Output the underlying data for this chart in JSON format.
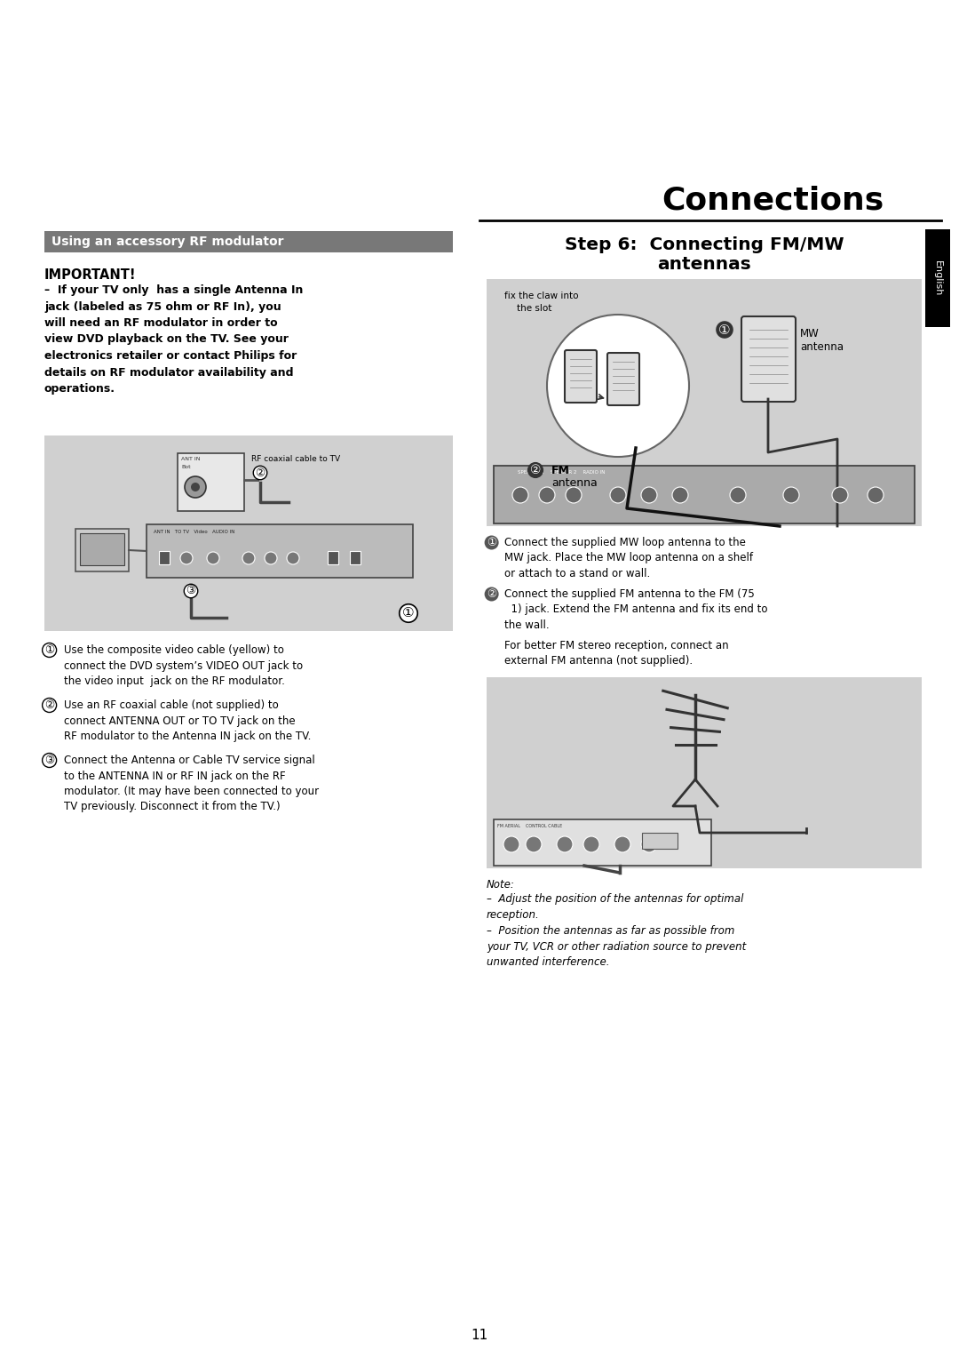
{
  "title": "Connections",
  "page_number": "11",
  "background_color": "#ffffff",
  "section_left_title": "Using an accessory RF modulator",
  "section_left_title_bg": "#787878",
  "section_left_title_color": "#ffffff",
  "important_title": "IMPORTANT!",
  "step6_line1": "Step 6:  Connecting FM/MW",
  "step6_line2": "antennas",
  "right_diagram_bg": "#d0d0d0",
  "left_diagram_bg": "#d0d0d0",
  "mw_label": "MW\nantenna",
  "fm_label": "FM\nantenna",
  "right_text1a": "① Connect the supplied MW loop antenna to the",
  "right_text1b": "MW jack. Place the MW loop antenna on a shelf\nor attach to a stand or wall.",
  "right_text2a": "② Connect the supplied FM antenna to the FM (75",
  "right_text2b": "  1) jack. Extend the FM antenna and fix its end to\nthe wall.",
  "right_text3": "For better FM stereo reception, connect an\nexternal FM antenna (not supplied).",
  "note_title": "Note:",
  "note_text1": "–  Adjust the position of the antennas for optimal\nreception.",
  "note_text2": "–  Position the antennas as far as possible from\nyour TV, VCR or other radiation source to prevent\nunwanted interference.",
  "bullet1_left": "Use the composite video cable (yellow) to\nconnect the DVD system’s VIDEO OUT jack to\nthe video input  jack on the RF modulator.",
  "bullet2_left": "Use an RF coaxial cable (not supplied) to\nconnect ANTENNA OUT or TO TV jack on the\nRF modulator to the Antenna IN jack on the TV.",
  "bullet3_left": "Connect the Antenna or Cable TV service signal\nto the ANTENNA IN or RF IN jack on the RF\nmodulator. (It may have been connected to your\nTV previously. Disconnect it from the TV.)",
  "sidebar_text": "English",
  "sidebar_bg": "#000000",
  "sidebar_color": "#ffffff",
  "important_body": "–  If your TV only  has a single Antenna In\njack (labeled as 75 ohm or RF In), you\nwill need an RF modulator in order to\nview DVD playback on the TV. See your\nelectronics retailer or contact Philips for\ndetails on RF modulator availability and\noperations."
}
